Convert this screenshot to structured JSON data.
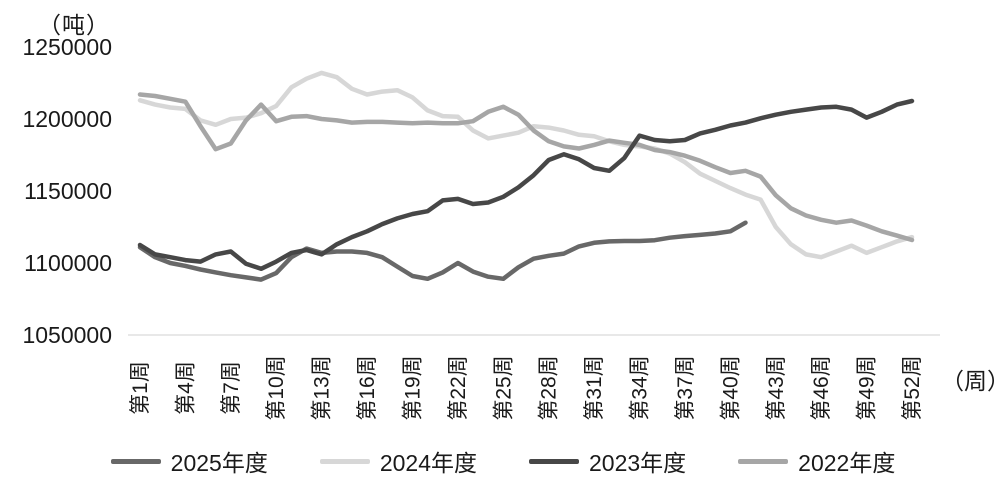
{
  "chart_data": {
    "type": "line",
    "title": "",
    "y_unit_label": "（吨）",
    "x_unit_label": "（周）",
    "ylabel": "",
    "xlabel": "",
    "ylim": [
      1050000,
      1250000
    ],
    "y_ticks": [
      1250000,
      1200000,
      1150000,
      1100000,
      1050000
    ],
    "weeks_total": 52,
    "grid": "off",
    "axis_line_color": "#d9d9d9",
    "x_ticks": [
      {
        "week": 1,
        "label": "第1周"
      },
      {
        "week": 4,
        "label": "第4周"
      },
      {
        "week": 7,
        "label": "第7周"
      },
      {
        "week": 10,
        "label": "第10周"
      },
      {
        "week": 13,
        "label": "第13周"
      },
      {
        "week": 16,
        "label": "第16周"
      },
      {
        "week": 19,
        "label": "第19周"
      },
      {
        "week": 22,
        "label": "第22周"
      },
      {
        "week": 25,
        "label": "第25周"
      },
      {
        "week": 28,
        "label": "第28周"
      },
      {
        "week": 31,
        "label": "第31周"
      },
      {
        "week": 34,
        "label": "第34周"
      },
      {
        "week": 37,
        "label": "第37周"
      },
      {
        "week": 40,
        "label": "第40周"
      },
      {
        "week": 43,
        "label": "第43周"
      },
      {
        "week": 46,
        "label": "第46周"
      },
      {
        "week": 49,
        "label": "第49周"
      },
      {
        "week": 52,
        "label": "第52周"
      }
    ],
    "legend": {
      "position": "bottom",
      "entries": [
        "2025年度",
        "2024年度",
        "2023年度",
        "2022年度"
      ]
    },
    "series": [
      {
        "name": "2025年度",
        "color": "#686868",
        "start_week": 1,
        "values": [
          1111000,
          1104000,
          1100000,
          1098000,
          1095500,
          1093500,
          1091500,
          1090000,
          1088500,
          1093000,
          1104000,
          1110000,
          1107000,
          1108000,
          1108000,
          1107000,
          1104000,
          1097500,
          1091000,
          1089000,
          1093500,
          1100000,
          1094000,
          1090500,
          1089000,
          1097000,
          1103000,
          1105000,
          1106500,
          1111500,
          1114000,
          1115000,
          1115300,
          1115300,
          1115800,
          1117600,
          1118700,
          1119500,
          1120500,
          1122000,
          1128000
        ]
      },
      {
        "name": "2024年度",
        "color": "#d7d7d7",
        "start_week": 1,
        "values": [
          1213000,
          1210000,
          1208000,
          1207000,
          1199000,
          1196000,
          1200000,
          1201000,
          1204000,
          1209000,
          1222000,
          1228000,
          1232000,
          1229000,
          1221000,
          1217000,
          1219000,
          1220000,
          1215000,
          1206000,
          1202000,
          1201500,
          1192000,
          1186500,
          1188500,
          1190500,
          1195000,
          1194000,
          1192000,
          1189000,
          1188000,
          1184500,
          1182000,
          1181000,
          1179500,
          1176000,
          1170000,
          1162000,
          1157000,
          1152000,
          1147500,
          1144000,
          1125000,
          1113000,
          1106000,
          1104000,
          1108000,
          1112000,
          1107000,
          1111000,
          1115000,
          1118000
        ]
      },
      {
        "name": "2023年度",
        "color": "#474747",
        "start_week": 1,
        "values": [
          1112500,
          1106000,
          1104000,
          1102000,
          1101000,
          1106000,
          1108000,
          1099500,
          1096000,
          1101000,
          1107000,
          1109000,
          1106000,
          1113000,
          1118000,
          1122000,
          1127000,
          1131000,
          1134000,
          1136000,
          1143500,
          1144500,
          1141000,
          1142000,
          1146000,
          1152500,
          1161000,
          1171500,
          1175500,
          1172000,
          1166000,
          1164000,
          1173000,
          1188500,
          1185400,
          1184500,
          1185400,
          1190000,
          1192500,
          1195500,
          1197500,
          1200500,
          1203000,
          1205000,
          1206500,
          1208000,
          1208500,
          1206500,
          1201000,
          1205000,
          1210000,
          1212500
        ]
      },
      {
        "name": "2022年度",
        "color": "#a6a6a6",
        "start_week": 1,
        "values": [
          1217000,
          1216000,
          1214000,
          1212000,
          1195000,
          1179000,
          1183000,
          1199000,
          1210000,
          1198500,
          1201500,
          1202000,
          1200000,
          1199000,
          1197500,
          1198000,
          1198000,
          1197500,
          1197000,
          1197500,
          1197000,
          1197000,
          1198500,
          1205000,
          1208500,
          1203000,
          1192000,
          1184500,
          1181000,
          1179500,
          1182000,
          1185000,
          1183500,
          1182000,
          1178500,
          1177000,
          1174500,
          1171000,
          1166500,
          1162500,
          1164000,
          1160000,
          1147000,
          1138000,
          1133000,
          1130000,
          1128000,
          1129500,
          1126000,
          1122000,
          1119000,
          1116000
        ]
      }
    ]
  }
}
